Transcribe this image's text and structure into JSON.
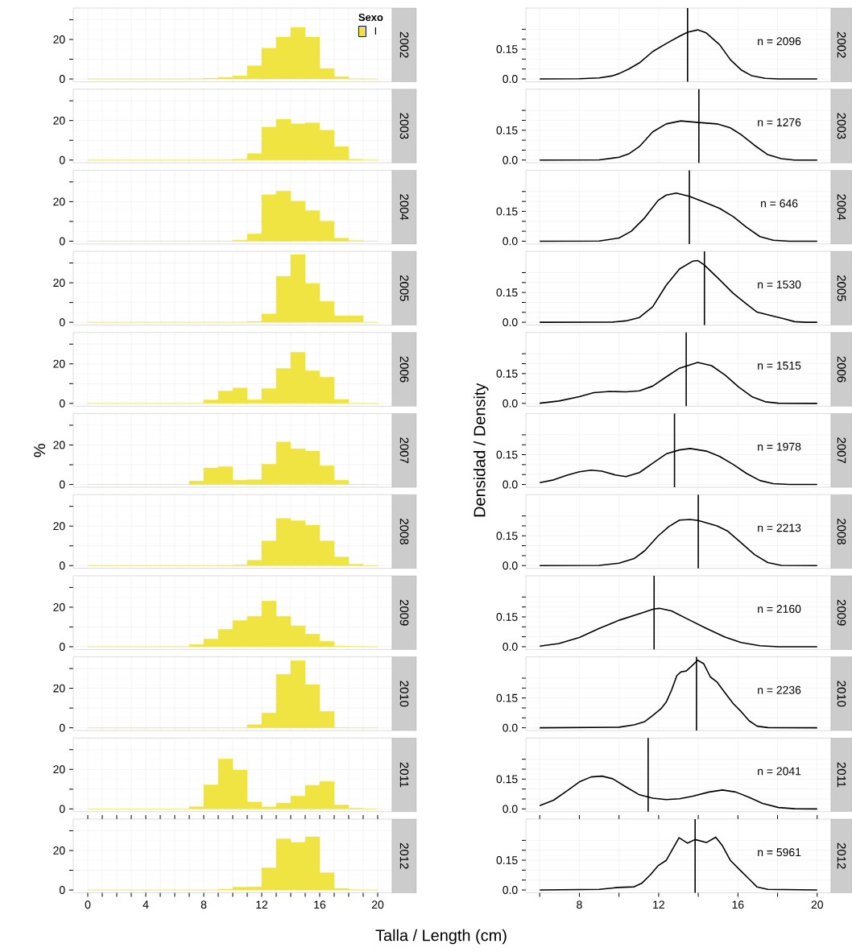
{
  "chart_data": [
    {
      "type": "histogram",
      "annotations": [
        "2002"
      ],
      "bins": [
        0,
        1,
        2,
        3,
        4,
        5,
        6,
        7,
        8,
        9,
        10,
        11,
        12,
        13,
        14,
        15,
        16,
        17,
        18,
        19,
        20
      ],
      "series": [
        {
          "name": "I",
          "color": "#f0e442",
          "values": [
            0,
            0,
            0,
            0,
            0,
            0,
            0,
            0.1,
            0.4,
            0.8,
            1.6,
            6.7,
            15.6,
            21.2,
            26.1,
            21.2,
            5.3,
            1.2,
            0.1,
            0
          ]
        }
      ],
      "legend": "top right",
      "legend_title": "Sexo",
      "xlim": [
        -1,
        21
      ],
      "ylim": [
        -1.4,
        35.9
      ],
      "xticks": [
        0,
        1,
        2,
        3,
        4,
        5,
        6,
        7,
        8,
        9,
        10,
        11,
        12,
        13,
        14,
        15,
        16,
        17,
        18,
        19,
        20
      ],
      "yticks": [
        0,
        {
          "value": 10,
          "label": null
        },
        20,
        {
          "value": 30,
          "label": null
        }
      ],
      "grid": true,
      "tick_labels": "y"
    },
    {
      "type": "line",
      "x": [
        6,
        8,
        9,
        9.68,
        10,
        10.49,
        11.03,
        11.7,
        12.38,
        13.05,
        13.46,
        13.97,
        14.4,
        15.08,
        15.62,
        16.16,
        16.7,
        17.38,
        18.05,
        20
      ],
      "values": [
        0,
        0.001,
        0.005,
        0.016,
        0.027,
        0.05,
        0.081,
        0.138,
        0.178,
        0.215,
        0.235,
        0.247,
        0.232,
        0.172,
        0.097,
        0.046,
        0.016,
        0.003,
        0,
        0
      ],
      "color": "#000000",
      "xlim": [
        5.3,
        20.7
      ],
      "ylim": [
        -0.014,
        0.357
      ],
      "xticks": [
        {
          "value": 6,
          "label": null
        },
        8,
        {
          "value": 10,
          "label": null
        },
        12,
        {
          "value": 14,
          "label": null
        },
        16,
        {
          "value": 18,
          "label": null
        },
        20
      ],
      "yticks": [
        {
          "value": 0,
          "label": "0.0"
        },
        {
          "value": 0.05,
          "label": null
        },
        {
          "value": 0.1,
          "label": null
        },
        0.15,
        {
          "value": 0.2,
          "label": null
        },
        {
          "value": 0.25,
          "label": null
        }
      ],
      "grid": true,
      "tick_labels": "y",
      "ref_lines": [
        {
          "axis": "x",
          "value": 13.46,
          "color": "#000000"
        }
      ],
      "annotations": [
        "n = 2096",
        "2002"
      ]
    },
    {
      "type": "histogram",
      "annotations": [
        "2003"
      ],
      "bins": [
        0,
        1,
        2,
        3,
        4,
        5,
        6,
        7,
        8,
        9,
        10,
        11,
        12,
        13,
        14,
        15,
        16,
        17,
        18,
        19,
        20
      ],
      "values": [
        0,
        0,
        0,
        0,
        0,
        0,
        0,
        0,
        0,
        0,
        0.4,
        3.3,
        16.7,
        20.7,
        18.4,
        18.8,
        15.1,
        6.8,
        0.4,
        0
      ],
      "color": "#f0e442",
      "xlim": [
        -1,
        21
      ],
      "ylim": [
        -1.4,
        35.9
      ],
      "xticks": [
        0,
        1,
        2,
        3,
        4,
        5,
        6,
        7,
        8,
        9,
        10,
        11,
        12,
        13,
        14,
        15,
        16,
        17,
        18,
        19,
        20
      ],
      "yticks": [
        0,
        {
          "value": 10,
          "label": null
        },
        20,
        {
          "value": 30,
          "label": null
        }
      ],
      "grid": true,
      "tick_labels": "y"
    },
    {
      "type": "line",
      "x": [
        6,
        9,
        10,
        10.49,
        11.03,
        11.7,
        12.38,
        13.12,
        14.03,
        14.95,
        15.62,
        16.16,
        16.84,
        17.51,
        18.19,
        18.86,
        20
      ],
      "values": [
        0,
        0.001,
        0.014,
        0.031,
        0.068,
        0.142,
        0.182,
        0.197,
        0.189,
        0.182,
        0.162,
        0.128,
        0.074,
        0.027,
        0.007,
        0,
        0
      ],
      "color": "#000000",
      "xlim": [
        5.3,
        20.7
      ],
      "ylim": [
        -0.014,
        0.357
      ],
      "xticks": [
        {
          "value": 6,
          "label": null
        },
        8,
        {
          "value": 10,
          "label": null
        },
        12,
        {
          "value": 14,
          "label": null
        },
        16,
        {
          "value": 18,
          "label": null
        },
        20
      ],
      "yticks": [
        {
          "value": 0,
          "label": "0.0"
        },
        {
          "value": 0.05,
          "label": null
        },
        {
          "value": 0.1,
          "label": null
        },
        0.15,
        {
          "value": 0.2,
          "label": null
        },
        {
          "value": 0.25,
          "label": null
        }
      ],
      "grid": true,
      "tick_labels": "y",
      "ref_lines": [
        {
          "axis": "x",
          "value": 14.03,
          "color": "#000000"
        }
      ],
      "annotations": [
        "n = 1276",
        "2003"
      ]
    },
    {
      "type": "histogram",
      "annotations": [
        "2004"
      ],
      "bins": [
        0,
        1,
        2,
        3,
        4,
        5,
        6,
        7,
        8,
        9,
        10,
        11,
        12,
        13,
        14,
        15,
        16,
        17,
        18,
        19,
        20
      ],
      "values": [
        0,
        0,
        0,
        0,
        0,
        0,
        0,
        0,
        0,
        0,
        0.5,
        3.7,
        23.5,
        25.4,
        20.3,
        15.5,
        10.1,
        1.5,
        0.3,
        0
      ],
      "color": "#f0e442",
      "xlim": [
        -1,
        21
      ],
      "ylim": [
        -1.4,
        35.9
      ],
      "xticks": [
        0,
        1,
        2,
        3,
        4,
        5,
        6,
        7,
        8,
        9,
        10,
        11,
        12,
        13,
        14,
        15,
        16,
        17,
        18,
        19,
        20
      ],
      "yticks": [
        0,
        {
          "value": 10,
          "label": null
        },
        20,
        {
          "value": 30,
          "label": null
        }
      ],
      "grid": true,
      "tick_labels": "y"
    },
    {
      "type": "line",
      "x": [
        6,
        9,
        10,
        10.62,
        11.3,
        11.97,
        12.38,
        12.89,
        13.55,
        14.41,
        15.08,
        15.76,
        16.43,
        17.11,
        17.78,
        18.59,
        20
      ],
      "values": [
        0,
        0.001,
        0.016,
        0.05,
        0.118,
        0.205,
        0.232,
        0.242,
        0.226,
        0.192,
        0.165,
        0.124,
        0.07,
        0.023,
        0.005,
        0,
        0
      ],
      "color": "#000000",
      "xlim": [
        5.3,
        20.7
      ],
      "ylim": [
        -0.014,
        0.357
      ],
      "xticks": [
        {
          "value": 6,
          "label": null
        },
        8,
        {
          "value": 10,
          "label": null
        },
        12,
        {
          "value": 14,
          "label": null
        },
        16,
        {
          "value": 18,
          "label": null
        },
        20
      ],
      "yticks": [
        {
          "value": 0,
          "label": "0.0"
        },
        {
          "value": 0.05,
          "label": null
        },
        {
          "value": 0.1,
          "label": null
        },
        0.15,
        {
          "value": 0.2,
          "label": null
        },
        {
          "value": 0.25,
          "label": null
        }
      ],
      "grid": true,
      "tick_labels": "y",
      "ref_lines": [
        {
          "axis": "x",
          "value": 13.55,
          "color": "#000000"
        }
      ],
      "annotations": [
        "n = 646",
        "2004"
      ]
    },
    {
      "type": "histogram",
      "annotations": [
        "2005"
      ],
      "bins": [
        0,
        1,
        2,
        3,
        4,
        5,
        6,
        7,
        8,
        9,
        10,
        11,
        12,
        13,
        14,
        15,
        16,
        17,
        18,
        19,
        20
      ],
      "values": [
        0,
        0,
        0,
        0,
        0,
        0,
        0,
        0,
        0,
        0,
        0,
        0.4,
        4.2,
        23.3,
        34.3,
        19.6,
        10.6,
        3.3,
        3.3,
        0
      ],
      "color": "#f0e442",
      "xlim": [
        -1,
        21
      ],
      "ylim": [
        -1.4,
        35.9
      ],
      "xticks": [
        0,
        1,
        2,
        3,
        4,
        5,
        6,
        7,
        8,
        9,
        10,
        11,
        12,
        13,
        14,
        15,
        16,
        17,
        18,
        19,
        20
      ],
      "yticks": [
        0,
        {
          "value": 10,
          "label": null
        },
        20,
        {
          "value": 30,
          "label": null
        }
      ],
      "grid": true,
      "tick_labels": "y"
    },
    {
      "type": "line",
      "x": [
        6,
        9.68,
        10.35,
        11.03,
        11.7,
        12.38,
        13.05,
        13.73,
        13.97,
        14.31,
        15.08,
        15.76,
        16.43,
        16.97,
        17.78,
        18.32,
        18.86,
        19.41,
        20
      ],
      "values": [
        0,
        0.001,
        0.007,
        0.024,
        0.078,
        0.186,
        0.268,
        0.308,
        0.311,
        0.288,
        0.214,
        0.146,
        0.092,
        0.051,
        0.031,
        0.018,
        0.003,
        0,
        0
      ],
      "color": "#000000",
      "xlim": [
        5.3,
        20.7
      ],
      "ylim": [
        -0.014,
        0.357
      ],
      "xticks": [
        {
          "value": 6,
          "label": null
        },
        8,
        {
          "value": 10,
          "label": null
        },
        12,
        {
          "value": 14,
          "label": null
        },
        16,
        {
          "value": 18,
          "label": null
        },
        20
      ],
      "yticks": [
        {
          "value": 0,
          "label": "0.0"
        },
        {
          "value": 0.05,
          "label": null
        },
        {
          "value": 0.1,
          "label": null
        },
        0.15,
        {
          "value": 0.2,
          "label": null
        },
        {
          "value": 0.25,
          "label": null
        }
      ],
      "grid": true,
      "tick_labels": "y",
      "ref_lines": [
        {
          "axis": "x",
          "value": 14.31,
          "color": "#000000"
        }
      ],
      "annotations": [
        "n = 1530",
        "2005"
      ]
    },
    {
      "type": "histogram",
      "annotations": [
        "2006"
      ],
      "bins": [
        0,
        1,
        2,
        3,
        4,
        5,
        6,
        7,
        8,
        9,
        10,
        11,
        12,
        13,
        14,
        15,
        16,
        17,
        18,
        19,
        20
      ],
      "values": [
        0,
        0,
        0,
        0,
        0,
        0,
        0,
        0,
        1.8,
        6.3,
        7.8,
        1.9,
        7.5,
        17.7,
        25.9,
        16.5,
        13.3,
        2.0,
        0,
        0
      ],
      "color": "#f0e442",
      "xlim": [
        -1,
        21
      ],
      "ylim": [
        -1.4,
        35.9
      ],
      "xticks": [
        0,
        1,
        2,
        3,
        4,
        5,
        6,
        7,
        8,
        9,
        10,
        11,
        12,
        13,
        14,
        15,
        16,
        17,
        18,
        19,
        20
      ],
      "yticks": [
        0,
        {
          "value": 10,
          "label": null
        },
        20,
        {
          "value": 30,
          "label": null
        }
      ],
      "grid": true,
      "tick_labels": "y"
    },
    {
      "type": "line",
      "x": [
        6,
        6.97,
        8,
        8.73,
        9.54,
        10.35,
        11.03,
        11.7,
        12.38,
        13.05,
        13.97,
        14.67,
        15.35,
        16.03,
        16.7,
        17.38,
        18.05,
        20
      ],
      "values": [
        0.001,
        0.012,
        0.034,
        0.054,
        0.06,
        0.058,
        0.063,
        0.087,
        0.133,
        0.177,
        0.206,
        0.19,
        0.143,
        0.083,
        0.034,
        0.008,
        0.001,
        0
      ],
      "color": "#000000",
      "xlim": [
        5.3,
        20.7
      ],
      "ylim": [
        -0.014,
        0.357
      ],
      "xticks": [
        {
          "value": 6,
          "label": null
        },
        8,
        {
          "value": 10,
          "label": null
        },
        12,
        {
          "value": 14,
          "label": null
        },
        16,
        {
          "value": 18,
          "label": null
        },
        20
      ],
      "yticks": [
        {
          "value": 0,
          "label": "0.0"
        },
        {
          "value": 0.05,
          "label": null
        },
        {
          "value": 0.1,
          "label": null
        },
        0.15,
        {
          "value": 0.2,
          "label": null
        },
        {
          "value": 0.25,
          "label": null
        }
      ],
      "grid": true,
      "tick_labels": "y",
      "ref_lines": [
        {
          "axis": "x",
          "value": 13.39,
          "color": "#000000"
        }
      ],
      "annotations": [
        "n = 1515",
        "2006"
      ]
    },
    {
      "type": "histogram",
      "annotations": [
        "2007"
      ],
      "ylabel": "%",
      "bins": [
        0,
        1,
        2,
        3,
        4,
        5,
        6,
        7,
        8,
        9,
        10,
        11,
        12,
        13,
        14,
        15,
        16,
        17,
        18,
        19,
        20
      ],
      "values": [
        0,
        0,
        0,
        0,
        0,
        0,
        0,
        1.8,
        8.4,
        9.1,
        2.2,
        2.4,
        10.3,
        21.5,
        18.1,
        16.9,
        9.5,
        2.2,
        0,
        0
      ],
      "color": "#f0e442",
      "xlim": [
        -1,
        21
      ],
      "ylim": [
        -1.4,
        35.9
      ],
      "xticks": [
        0,
        1,
        2,
        3,
        4,
        5,
        6,
        7,
        8,
        9,
        10,
        11,
        12,
        13,
        14,
        15,
        16,
        17,
        18,
        19,
        20
      ],
      "yticks": [
        0,
        {
          "value": 10,
          "label": null
        },
        20,
        {
          "value": 30,
          "label": null
        }
      ],
      "grid": true,
      "tick_labels": "y"
    },
    {
      "type": "line",
      "ylabel": "Densidad / Density",
      "x": [
        6,
        6.7,
        7.38,
        8,
        8.59,
        9.14,
        9.81,
        10.35,
        11.03,
        11.7,
        12.38,
        13.05,
        13.59,
        14.41,
        15.08,
        15.76,
        16.43,
        17.11,
        17.78,
        18.59,
        20
      ],
      "values": [
        0.009,
        0.023,
        0.047,
        0.064,
        0.072,
        0.067,
        0.048,
        0.04,
        0.06,
        0.107,
        0.154,
        0.174,
        0.181,
        0.168,
        0.141,
        0.101,
        0.056,
        0.02,
        0.004,
        0,
        0
      ],
      "color": "#000000",
      "xlim": [
        5.3,
        20.7
      ],
      "ylim": [
        -0.014,
        0.357
      ],
      "xticks": [
        {
          "value": 6,
          "label": null
        },
        8,
        {
          "value": 10,
          "label": null
        },
        12,
        {
          "value": 14,
          "label": null
        },
        16,
        {
          "value": 18,
          "label": null
        },
        20
      ],
      "yticks": [
        {
          "value": 0,
          "label": "0.0"
        },
        {
          "value": 0.05,
          "label": null
        },
        {
          "value": 0.1,
          "label": null
        },
        0.15,
        {
          "value": 0.2,
          "label": null
        },
        {
          "value": 0.25,
          "label": null
        }
      ],
      "grid": true,
      "tick_labels": "y",
      "ref_lines": [
        {
          "axis": "x",
          "value": 12.8,
          "color": "#000000"
        }
      ],
      "annotations": [
        "n = 1978",
        "2007"
      ]
    },
    {
      "type": "histogram",
      "annotations": [
        "2008"
      ],
      "bins": [
        0,
        1,
        2,
        3,
        4,
        5,
        6,
        7,
        8,
        9,
        10,
        11,
        12,
        13,
        14,
        15,
        16,
        17,
        18,
        19,
        20
      ],
      "values": [
        0,
        0,
        0,
        0,
        0,
        0,
        0,
        0,
        0,
        0,
        0.4,
        2.7,
        12.5,
        23.9,
        22.7,
        20.5,
        12.5,
        4.4,
        0.7,
        0
      ],
      "color": "#f0e442",
      "xlim": [
        -1,
        21
      ],
      "ylim": [
        -1.4,
        35.9
      ],
      "xticks": [
        0,
        1,
        2,
        3,
        4,
        5,
        6,
        7,
        8,
        9,
        10,
        11,
        12,
        13,
        14,
        15,
        16,
        17,
        18,
        19,
        20
      ],
      "yticks": [
        0,
        {
          "value": 10,
          "label": null
        },
        20,
        {
          "value": 30,
          "label": null
        }
      ],
      "grid": true,
      "tick_labels": "y"
    },
    {
      "type": "line",
      "x": [
        6,
        9,
        10,
        10.76,
        11.3,
        11.97,
        12.51,
        13.05,
        13.59,
        14.0,
        14.95,
        15.49,
        16.16,
        16.84,
        17.51,
        18.19,
        20
      ],
      "values": [
        0,
        0.001,
        0.012,
        0.035,
        0.075,
        0.149,
        0.196,
        0.229,
        0.232,
        0.227,
        0.2,
        0.173,
        0.115,
        0.055,
        0.015,
        0.001,
        0
      ],
      "color": "#000000",
      "xlim": [
        5.3,
        20.7
      ],
      "ylim": [
        -0.014,
        0.357
      ],
      "xticks": [
        {
          "value": 6,
          "label": null
        },
        8,
        {
          "value": 10,
          "label": null
        },
        12,
        {
          "value": 14,
          "label": null
        },
        16,
        {
          "value": 18,
          "label": null
        },
        20
      ],
      "yticks": [
        {
          "value": 0,
          "label": "0.0"
        },
        {
          "value": 0.05,
          "label": null
        },
        {
          "value": 0.1,
          "label": null
        },
        0.15,
        {
          "value": 0.2,
          "label": null
        },
        {
          "value": 0.25,
          "label": null
        }
      ],
      "grid": true,
      "tick_labels": "y",
      "ref_lines": [
        {
          "axis": "x",
          "value": 14.0,
          "color": "#000000"
        }
      ],
      "annotations": [
        "n = 2213",
        "2008"
      ]
    },
    {
      "type": "histogram",
      "annotations": [
        "2009"
      ],
      "bins": [
        0,
        1,
        2,
        3,
        4,
        5,
        6,
        7,
        8,
        9,
        10,
        11,
        12,
        13,
        14,
        15,
        16,
        17,
        18,
        19,
        20
      ],
      "values": [
        0,
        0,
        0,
        0,
        0,
        0,
        0,
        1.1,
        3.9,
        8.8,
        13.3,
        15.4,
        23.1,
        15.4,
        10.6,
        6.4,
        2.7,
        0.3,
        0.1,
        0
      ],
      "color": "#f0e442",
      "xlim": [
        -1,
        21
      ],
      "ylim": [
        -1.4,
        35.9
      ],
      "xticks": [
        0,
        1,
        2,
        3,
        4,
        5,
        6,
        7,
        8,
        9,
        10,
        11,
        12,
        13,
        14,
        15,
        16,
        17,
        18,
        19,
        20
      ],
      "yticks": [
        0,
        {
          "value": 10,
          "label": null
        },
        20,
        {
          "value": 30,
          "label": null
        }
      ],
      "grid": true,
      "tick_labels": "y"
    },
    {
      "type": "line",
      "x": [
        6,
        6.97,
        8,
        9,
        10,
        11.03,
        11.77,
        12.04,
        12.65,
        13.46,
        14.41,
        15.35,
        16.16,
        17.11,
        18.05,
        20
      ],
      "values": [
        0.003,
        0.016,
        0.046,
        0.092,
        0.133,
        0.166,
        0.19,
        0.193,
        0.18,
        0.139,
        0.092,
        0.048,
        0.021,
        0.005,
        0,
        0
      ],
      "color": "#000000",
      "xlim": [
        5.3,
        20.7
      ],
      "ylim": [
        -0.014,
        0.357
      ],
      "xticks": [
        {
          "value": 6,
          "label": null
        },
        8,
        {
          "value": 10,
          "label": null
        },
        12,
        {
          "value": 14,
          "label": null
        },
        16,
        {
          "value": 18,
          "label": null
        },
        20
      ],
      "yticks": [
        {
          "value": 0,
          "label": "0.0"
        },
        {
          "value": 0.05,
          "label": null
        },
        {
          "value": 0.1,
          "label": null
        },
        0.15,
        {
          "value": 0.2,
          "label": null
        },
        {
          "value": 0.25,
          "label": null
        }
      ],
      "grid": true,
      "tick_labels": "y",
      "ref_lines": [
        {
          "axis": "x",
          "value": 11.77,
          "color": "#000000"
        }
      ],
      "annotations": [
        "n = 2160",
        "2009"
      ]
    },
    {
      "type": "histogram",
      "annotations": [
        "2010"
      ],
      "bins": [
        0,
        1,
        2,
        3,
        4,
        5,
        6,
        7,
        8,
        9,
        10,
        11,
        12,
        13,
        14,
        15,
        16,
        17,
        18,
        19,
        20
      ],
      "values": [
        0,
        0,
        0,
        0,
        0,
        0,
        0,
        0,
        0,
        0,
        0,
        1.6,
        7.5,
        27.1,
        34.0,
        21.9,
        8.3,
        0.1,
        0,
        0
      ],
      "color": "#f0e442",
      "xlim": [
        -1,
        21
      ],
      "ylim": [
        -1.4,
        35.9
      ],
      "xticks": [
        0,
        1,
        2,
        3,
        4,
        5,
        6,
        7,
        8,
        9,
        10,
        11,
        12,
        13,
        14,
        15,
        16,
        17,
        18,
        19,
        20
      ],
      "yticks": [
        0,
        {
          "value": 10,
          "label": null
        },
        20,
        {
          "value": 30,
          "label": null
        }
      ],
      "grid": true,
      "tick_labels": "y"
    },
    {
      "type": "line",
      "x": [
        6,
        10,
        10.76,
        11.3,
        11.7,
        12.11,
        12.38,
        12.65,
        12.92,
        13.12,
        13.39,
        13.66,
        13.97,
        14.27,
        14.61,
        14.95,
        15.35,
        15.76,
        16.16,
        16.57,
        16.97,
        17.51,
        20
      ],
      "values": [
        0,
        0.003,
        0.015,
        0.031,
        0.062,
        0.095,
        0.129,
        0.189,
        0.263,
        0.281,
        0.286,
        0.31,
        0.34,
        0.323,
        0.256,
        0.23,
        0.176,
        0.122,
        0.082,
        0.035,
        0.008,
        0.001,
        0
      ],
      "color": "#000000",
      "xlim": [
        5.3,
        20.7
      ],
      "ylim": [
        -0.014,
        0.357
      ],
      "xticks": [
        {
          "value": 6,
          "label": null
        },
        8,
        {
          "value": 10,
          "label": null
        },
        12,
        {
          "value": 14,
          "label": null
        },
        16,
        {
          "value": 18,
          "label": null
        },
        20
      ],
      "yticks": [
        {
          "value": 0,
          "label": "0.0"
        },
        {
          "value": 0.05,
          "label": null
        },
        {
          "value": 0.1,
          "label": null
        },
        0.15,
        {
          "value": 0.2,
          "label": null
        },
        {
          "value": 0.25,
          "label": null
        }
      ],
      "grid": true,
      "tick_labels": "y",
      "ref_lines": [
        {
          "axis": "x",
          "value": 13.91,
          "color": "#000000"
        }
      ],
      "annotations": [
        "n = 2236",
        "2010"
      ]
    },
    {
      "type": "histogram",
      "annotations": [
        "2011"
      ],
      "bins": [
        0,
        1,
        2,
        3,
        4,
        5,
        6,
        7,
        8,
        9,
        10,
        11,
        12,
        13,
        14,
        15,
        16,
        17,
        18,
        19,
        20
      ],
      "values": [
        0,
        0,
        0,
        0,
        0,
        0,
        0,
        1.1,
        12.2,
        25.3,
        19.7,
        3.5,
        1.0,
        3.0,
        6.5,
        12.0,
        13.9,
        2.0,
        0.4,
        0
      ],
      "color": "#f0e442",
      "xlim": [
        -1,
        21
      ],
      "ylim": [
        -1.4,
        35.9
      ],
      "xticks": [
        0,
        1,
        2,
        3,
        4,
        5,
        6,
        7,
        8,
        9,
        10,
        11,
        12,
        13,
        14,
        15,
        16,
        17,
        18,
        19,
        20
      ],
      "yticks": [
        0,
        {
          "value": 10,
          "label": null
        },
        20,
        {
          "value": 30,
          "label": null
        }
      ],
      "grid": true,
      "tick_labels": "y"
    },
    {
      "type": "line",
      "x": [
        6,
        6.7,
        7.38,
        8,
        8.59,
        9.14,
        9.68,
        10.35,
        11.03,
        11.7,
        12.38,
        13.05,
        13.73,
        14.54,
        15.22,
        15.89,
        16.57,
        17.24,
        18.05,
        18.86,
        20
      ],
      "values": [
        0.017,
        0.044,
        0.091,
        0.136,
        0.161,
        0.165,
        0.152,
        0.111,
        0.071,
        0.054,
        0.047,
        0.051,
        0.064,
        0.085,
        0.095,
        0.085,
        0.058,
        0.028,
        0.007,
        0.001,
        0
      ],
      "color": "#000000",
      "xlim": [
        5.3,
        20.7
      ],
      "ylim": [
        -0.014,
        0.357
      ],
      "xticks": [
        {
          "value": 6,
          "label": null
        },
        8,
        {
          "value": 10,
          "label": null
        },
        12,
        {
          "value": 14,
          "label": null
        },
        16,
        {
          "value": 18,
          "label": null
        },
        20
      ],
      "yticks": [
        {
          "value": 0,
          "label": "0.0"
        },
        {
          "value": 0.05,
          "label": null
        },
        {
          "value": 0.1,
          "label": null
        },
        0.15,
        {
          "value": 0.2,
          "label": null
        },
        {
          "value": 0.25,
          "label": null
        }
      ],
      "grid": true,
      "tick_labels": "y",
      "ref_lines": [
        {
          "axis": "x",
          "value": 11.47,
          "color": "#000000"
        }
      ],
      "annotations": [
        "n = 2041",
        "2011"
      ]
    },
    {
      "type": "histogram",
      "annotations": [
        "2012"
      ],
      "xlabel": "Talla / Length (cm)",
      "bins": [
        0,
        1,
        2,
        3,
        4,
        5,
        6,
        7,
        8,
        9,
        10,
        11,
        12,
        13,
        14,
        15,
        16,
        17,
        18,
        19,
        20
      ],
      "values": [
        0,
        0,
        0,
        0,
        0,
        0,
        0,
        0,
        0,
        0.4,
        1.5,
        1.6,
        11.2,
        25.9,
        24.1,
        26.9,
        8.8,
        0.8,
        0.1,
        0
      ],
      "color": "#f0e442",
      "xlim": [
        -1,
        21
      ],
      "ylim": [
        -1.4,
        35.9
      ],
      "xticks": [
        0,
        {
          "value": 1,
          "label": null
        },
        {
          "value": 2,
          "label": null
        },
        {
          "value": 3,
          "label": null
        },
        4,
        {
          "value": 5,
          "label": null
        },
        {
          "value": 6,
          "label": null
        },
        {
          "value": 7,
          "label": null
        },
        8,
        {
          "value": 9,
          "label": null
        },
        {
          "value": 10,
          "label": null
        },
        {
          "value": 11,
          "label": null
        },
        12,
        {
          "value": 13,
          "label": null
        },
        {
          "value": 14,
          "label": null
        },
        {
          "value": 15,
          "label": null
        },
        16,
        {
          "value": 17,
          "label": null
        },
        {
          "value": 18,
          "label": null
        },
        {
          "value": 19,
          "label": null
        },
        20
      ],
      "yticks": [
        0,
        {
          "value": 10,
          "label": null
        },
        20,
        {
          "value": 30,
          "label": null
        }
      ],
      "grid": true
    },
    {
      "type": "line",
      "x": [
        6,
        9,
        9.95,
        10.76,
        11.16,
        11.57,
        11.97,
        12.38,
        12.65,
        13.03,
        13.46,
        13.84,
        14.41,
        14.88,
        15.22,
        15.62,
        16.16,
        16.57,
        16.97,
        17.51,
        20
      ],
      "values": [
        0,
        0.003,
        0.013,
        0.016,
        0.035,
        0.075,
        0.122,
        0.149,
        0.196,
        0.263,
        0.236,
        0.254,
        0.239,
        0.266,
        0.223,
        0.149,
        0.095,
        0.055,
        0.015,
        0.003,
        0
      ],
      "color": "#000000",
      "xlim": [
        5.3,
        20.7
      ],
      "ylim": [
        -0.014,
        0.357
      ],
      "xticks": [
        {
          "value": 6,
          "label": null
        },
        8,
        {
          "value": 10,
          "label": null
        },
        12,
        {
          "value": 14,
          "label": null
        },
        16,
        {
          "value": 18,
          "label": null
        },
        20
      ],
      "yticks": [
        {
          "value": 0,
          "label": "0.0"
        },
        {
          "value": 0.05,
          "label": null
        },
        {
          "value": 0.1,
          "label": null
        },
        0.15,
        {
          "value": 0.2,
          "label": null
        },
        {
          "value": 0.25,
          "label": null
        }
      ],
      "grid": true,
      "ref_lines": [
        {
          "axis": "x",
          "value": 13.84,
          "color": "#000000"
        }
      ],
      "annotations": [
        "n = 5961",
        "2012"
      ]
    }
  ]
}
